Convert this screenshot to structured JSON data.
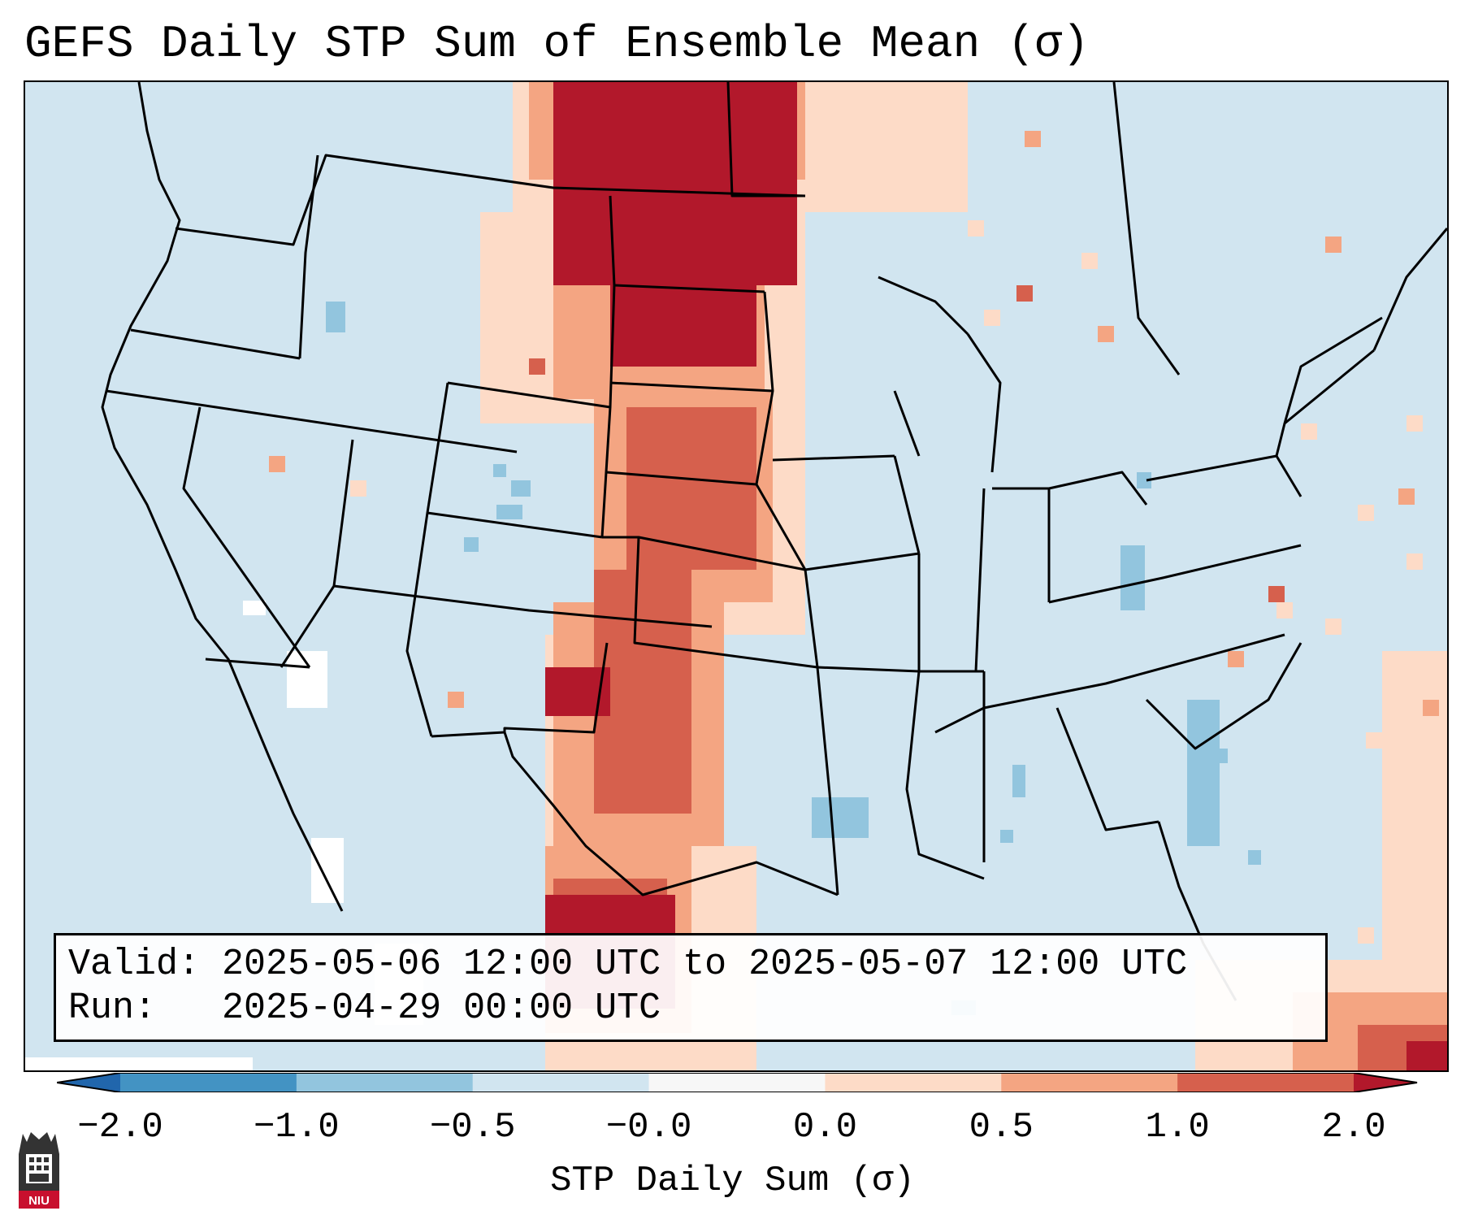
{
  "title": "GEFS Daily STP Sum of Ensemble Mean (σ)",
  "info": {
    "valid_label": "Valid:",
    "valid_value": "2025-05-06 12:00 UTC to 2025-05-07 12:00 UTC",
    "run_label": "Run:",
    "run_value": "2025-04-29 00:00 UTC"
  },
  "colorbar": {
    "label": "STP Daily Sum (σ)",
    "ticks": [
      "−2.0",
      "−1.0",
      "−0.5",
      "−0.0",
      "0.0",
      "0.5",
      "1.0",
      "2.0"
    ],
    "colors": [
      "#4393c3",
      "#92c5de",
      "#d1e5f0",
      "#f7f7f7",
      "#fddbc7",
      "#f4a582",
      "#d6604d"
    ],
    "extend_low_color": "#2166ac",
    "extend_high_color": "#b2182b"
  },
  "map": {
    "background_color": "#d1e5f0",
    "boundary_color": "#000000",
    "region": "Contiguous United States"
  },
  "logo": {
    "text": "NIU",
    "name": "niu-logo-icon"
  }
}
